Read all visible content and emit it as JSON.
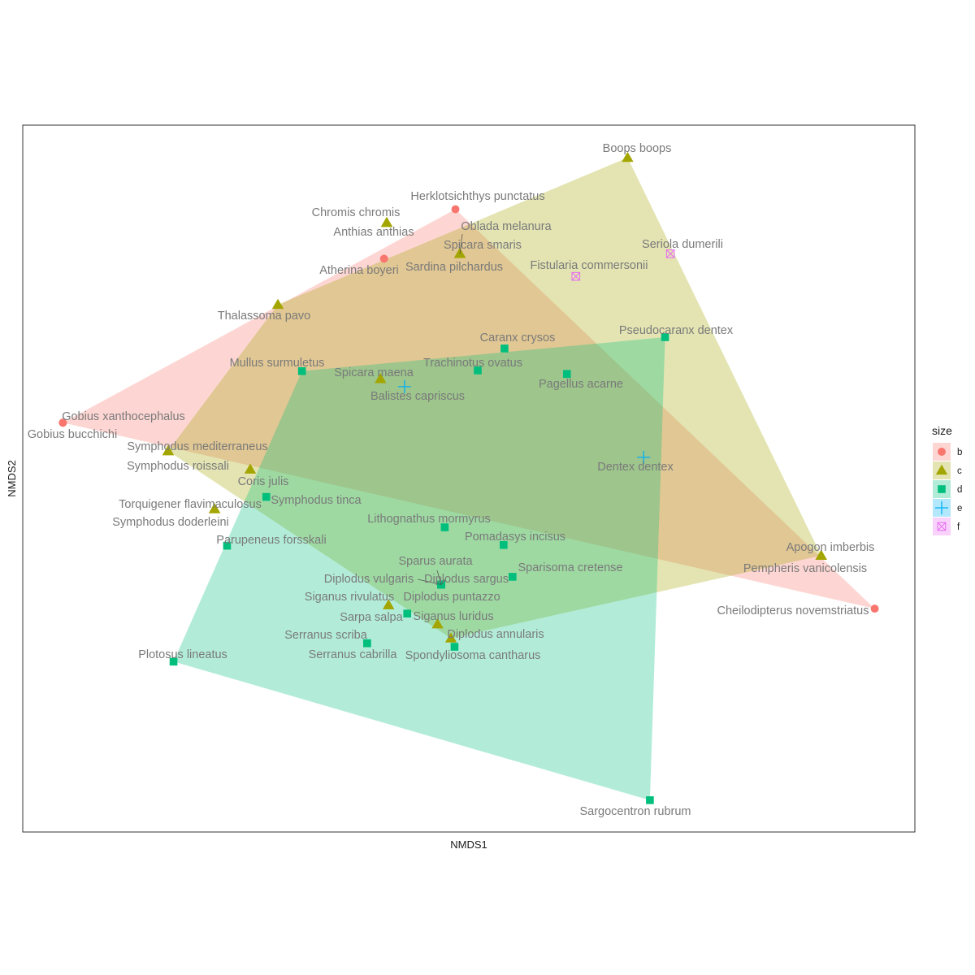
{
  "chart_data": {
    "type": "scatter",
    "title": "",
    "xlabel": "NMDS1",
    "ylabel": "NMDS2",
    "xlim": [
      0,
      100
    ],
    "ylim": [
      0,
      100
    ],
    "axis_ticks": "none",
    "grid": false,
    "legend": {
      "title": "size",
      "placement": "right",
      "entries": [
        {
          "key": "b",
          "label": "b",
          "color": "#F8766D",
          "shape": "circle"
        },
        {
          "key": "c",
          "label": "c",
          "color": "#A3A500",
          "shape": "triangle"
        },
        {
          "key": "d",
          "label": "d",
          "color": "#00BF7D",
          "shape": "square"
        },
        {
          "key": "e",
          "label": "e",
          "color": "#00B0F6",
          "shape": "plus"
        },
        {
          "key": "f",
          "label": "f",
          "color": "#E76BF3",
          "shape": "boxcross"
        }
      ]
    },
    "hulls": [
      {
        "group": "b",
        "color": "#F8766D",
        "points": [
          "Gobius bucchichi",
          "Herklotsichthys punctatus",
          "Cheilodipterus novemstriatus"
        ]
      },
      {
        "group": "c",
        "color": "#A3A500",
        "points": [
          "Boops boops",
          "Apogon imberbis",
          "Diplodus annularis",
          "Symphodus mediterraneus",
          "Thalassoma pavo"
        ]
      },
      {
        "group": "d",
        "color": "#00BF7D",
        "points": [
          "Pseudocaranx dentex",
          "Sargocentron rubrum",
          "Plotosus lineatus",
          "Mullus surmuletus"
        ]
      }
    ],
    "points": [
      {
        "species": "Herklotsichthys punctatus",
        "group": "b",
        "x": 48.5,
        "y": 88.1
      },
      {
        "species": "Atherina boyeri",
        "group": "b",
        "x": 40.5,
        "y": 81.1
      },
      {
        "species": "Gobius xanthocephalus",
        "group": "b",
        "x": 4.5,
        "y": 57.9
      },
      {
        "species": "Gobius bucchichi",
        "group": "b",
        "x": 4.5,
        "y": 57.9
      },
      {
        "species": "Cheilodipterus novemstriatus",
        "group": "b",
        "x": 95.5,
        "y": 31.6
      },
      {
        "species": "Boops boops",
        "group": "c",
        "x": 67.8,
        "y": 95.4
      },
      {
        "species": "Chromis chromis",
        "group": "c",
        "x": 40.8,
        "y": 86.2
      },
      {
        "species": "Anthias anthias",
        "group": "c",
        "x": 40.8,
        "y": 86.2
      },
      {
        "species": "Oblada melanura",
        "group": "c",
        "x": 49.0,
        "y": 81.8
      },
      {
        "species": "Spicara smaris",
        "group": "c",
        "x": 49.0,
        "y": 81.8
      },
      {
        "species": "Sardina pilchardus",
        "group": "c",
        "x": 49.0,
        "y": 81.8
      },
      {
        "species": "Thalassoma pavo",
        "group": "c",
        "x": 28.6,
        "y": 74.6
      },
      {
        "species": "Spicara maena",
        "group": "c",
        "x": 40.1,
        "y": 64.1
      },
      {
        "species": "Symphodus mediterraneus",
        "group": "c",
        "x": 16.3,
        "y": 53.9
      },
      {
        "species": "Symphodus roissali",
        "group": "c",
        "x": 16.3,
        "y": 53.9
      },
      {
        "species": "Coris julis",
        "group": "c",
        "x": 25.5,
        "y": 51.3
      },
      {
        "species": "Torquigener flavimaculosus",
        "group": "c",
        "x": 21.5,
        "y": 45.7
      },
      {
        "species": "Symphodus doderleini",
        "group": "c",
        "x": 21.5,
        "y": 45.7
      },
      {
        "species": "Apogon imberbis",
        "group": "c",
        "x": 89.5,
        "y": 39.1
      },
      {
        "species": "Pempheris vanicolensis",
        "group": "c",
        "x": 89.5,
        "y": 39.1
      },
      {
        "species": "Siganus rivulatus",
        "group": "c",
        "x": 41.0,
        "y": 32.1
      },
      {
        "species": "Siganus luridus",
        "group": "c",
        "x": 46.5,
        "y": 29.4
      },
      {
        "species": "Diplodus annularis",
        "group": "c",
        "x": 48.0,
        "y": 27.4
      },
      {
        "species": "Caranx crysos",
        "group": "d",
        "x": 54.0,
        "y": 68.4
      },
      {
        "species": "Pseudocaranx dentex",
        "group": "d",
        "x": 72.0,
        "y": 70.0
      },
      {
        "species": "Mullus surmuletus",
        "group": "d",
        "x": 31.3,
        "y": 65.2
      },
      {
        "species": "Trachinotus ovatus",
        "group": "d",
        "x": 51.0,
        "y": 65.3
      },
      {
        "species": "Pagellus acarne",
        "group": "d",
        "x": 61.0,
        "y": 64.8
      },
      {
        "species": "Symphodus tinca",
        "group": "d",
        "x": 27.3,
        "y": 47.4
      },
      {
        "species": "Lithognathus mormyrus",
        "group": "d",
        "x": 47.3,
        "y": 43.1
      },
      {
        "species": "Pomadasys incisus",
        "group": "d",
        "x": 53.9,
        "y": 40.6
      },
      {
        "species": "Parupeneus forsskali",
        "group": "d",
        "x": 22.9,
        "y": 40.5
      },
      {
        "species": "Sparisoma cretense",
        "group": "d",
        "x": 54.9,
        "y": 36.1
      },
      {
        "species": "Sparus aurata",
        "group": "d",
        "x": 46.9,
        "y": 35.0
      },
      {
        "species": "Diplodus vulgaris",
        "group": "d",
        "x": 46.9,
        "y": 35.0
      },
      {
        "species": "Diplodus sargus",
        "group": "d",
        "x": 46.9,
        "y": 35.0
      },
      {
        "species": "Diplodus puntazzo",
        "group": "d",
        "x": 46.9,
        "y": 35.0
      },
      {
        "species": "Sarpa salpa",
        "group": "d",
        "x": 43.1,
        "y": 30.9
      },
      {
        "species": "Serranus scriba",
        "group": "d",
        "x": 38.6,
        "y": 26.7
      },
      {
        "species": "Serranus cabrilla",
        "group": "d",
        "x": 38.6,
        "y": 26.7
      },
      {
        "species": "Spondyliosoma cantharus",
        "group": "d",
        "x": 48.4,
        "y": 26.2
      },
      {
        "species": "Plotosus lineatus",
        "group": "d",
        "x": 16.9,
        "y": 24.1
      },
      {
        "species": "Sargocentron rubrum",
        "group": "d",
        "x": 70.3,
        "y": 4.5
      },
      {
        "species": "Balistes capriscus",
        "group": "e",
        "x": 42.8,
        "y": 63.0
      },
      {
        "species": "Dentex dentex",
        "group": "e",
        "x": 69.6,
        "y": 53.0
      },
      {
        "species": "Seriola dumerili",
        "group": "f",
        "x": 72.6,
        "y": 81.8
      },
      {
        "species": "Fistularia commersonii",
        "group": "f",
        "x": 62.0,
        "y": 78.6
      }
    ]
  }
}
